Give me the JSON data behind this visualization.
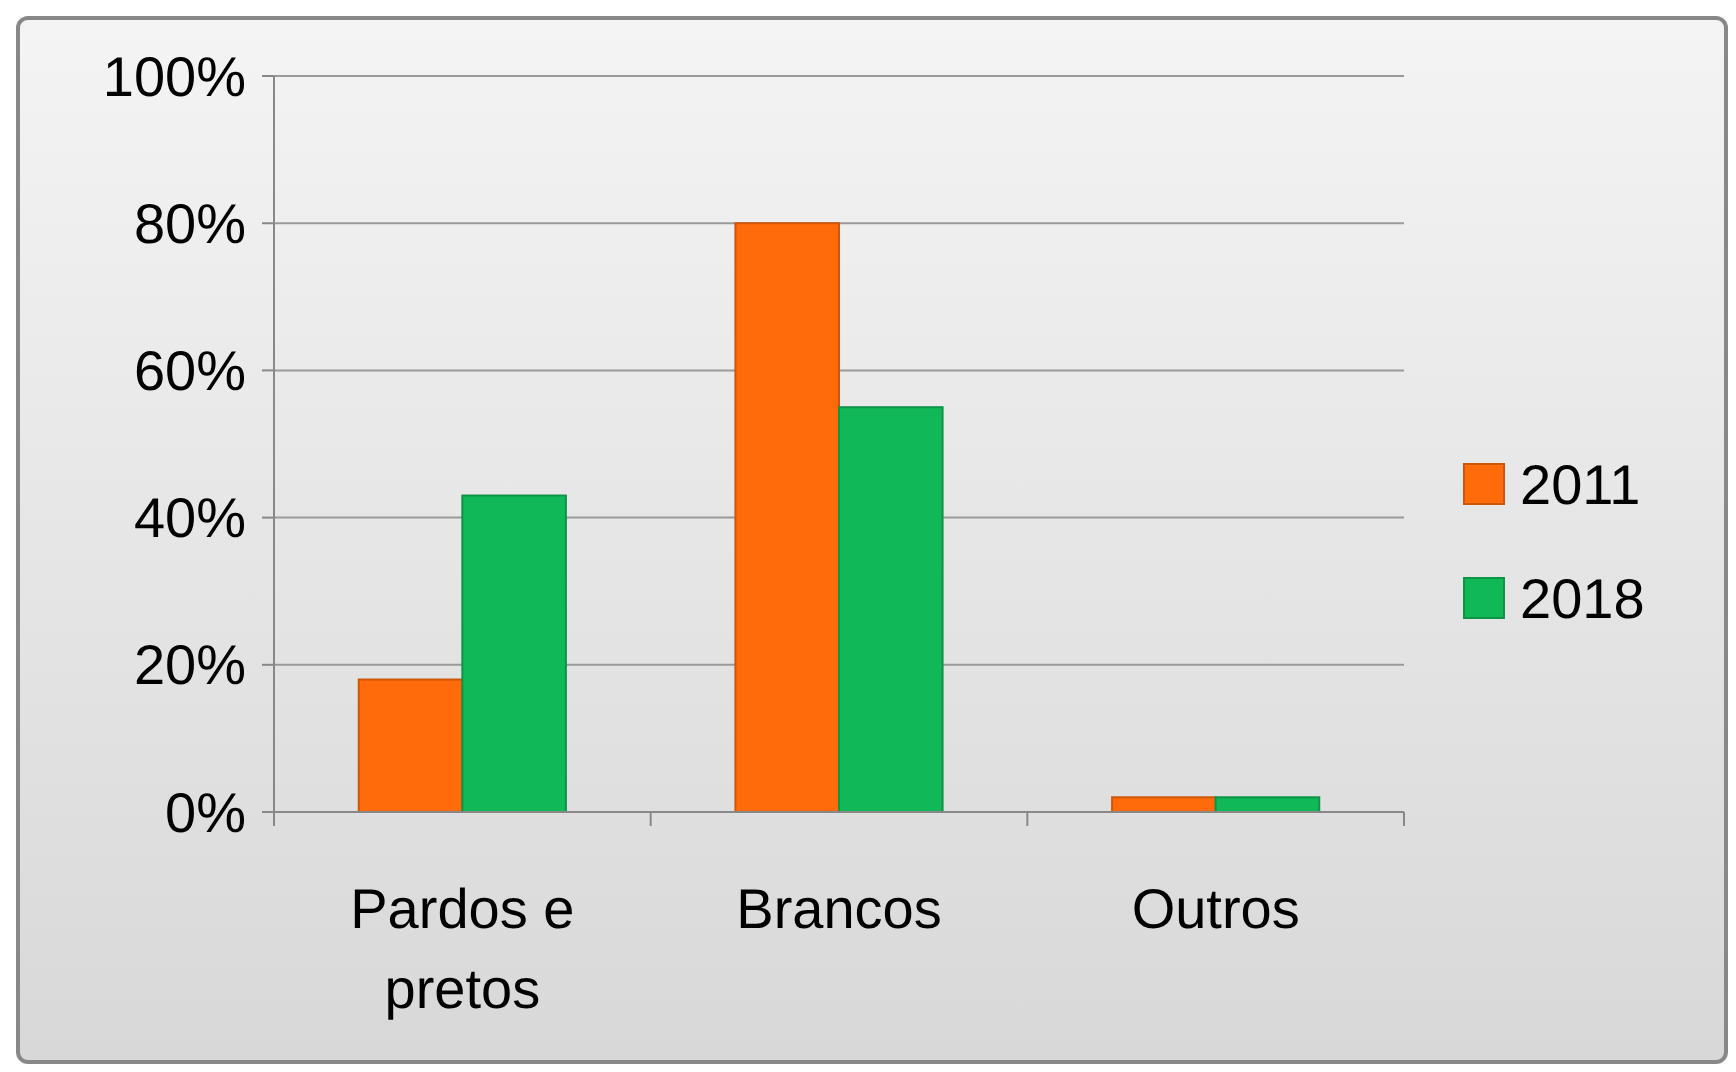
{
  "chart_data": {
    "type": "bar",
    "categories": [
      "Pardos e\npretos",
      "Brancos",
      "Outros"
    ],
    "series": [
      {
        "name": "2011",
        "color": "#ff6a0a",
        "values": [
          18,
          80,
          2
        ]
      },
      {
        "name": "2018",
        "color": "#10b858",
        "values": [
          43,
          55,
          2
        ]
      }
    ],
    "ylim": [
      0,
      100
    ],
    "yticks": [
      {
        "value": 0,
        "label": "0%"
      },
      {
        "value": 20,
        "label": "20%"
      },
      {
        "value": 40,
        "label": "40%"
      },
      {
        "value": 60,
        "label": "60%"
      },
      {
        "value": 80,
        "label": "80%"
      },
      {
        "value": 100,
        "label": "100%"
      }
    ],
    "grid": "y",
    "legend": "right"
  }
}
